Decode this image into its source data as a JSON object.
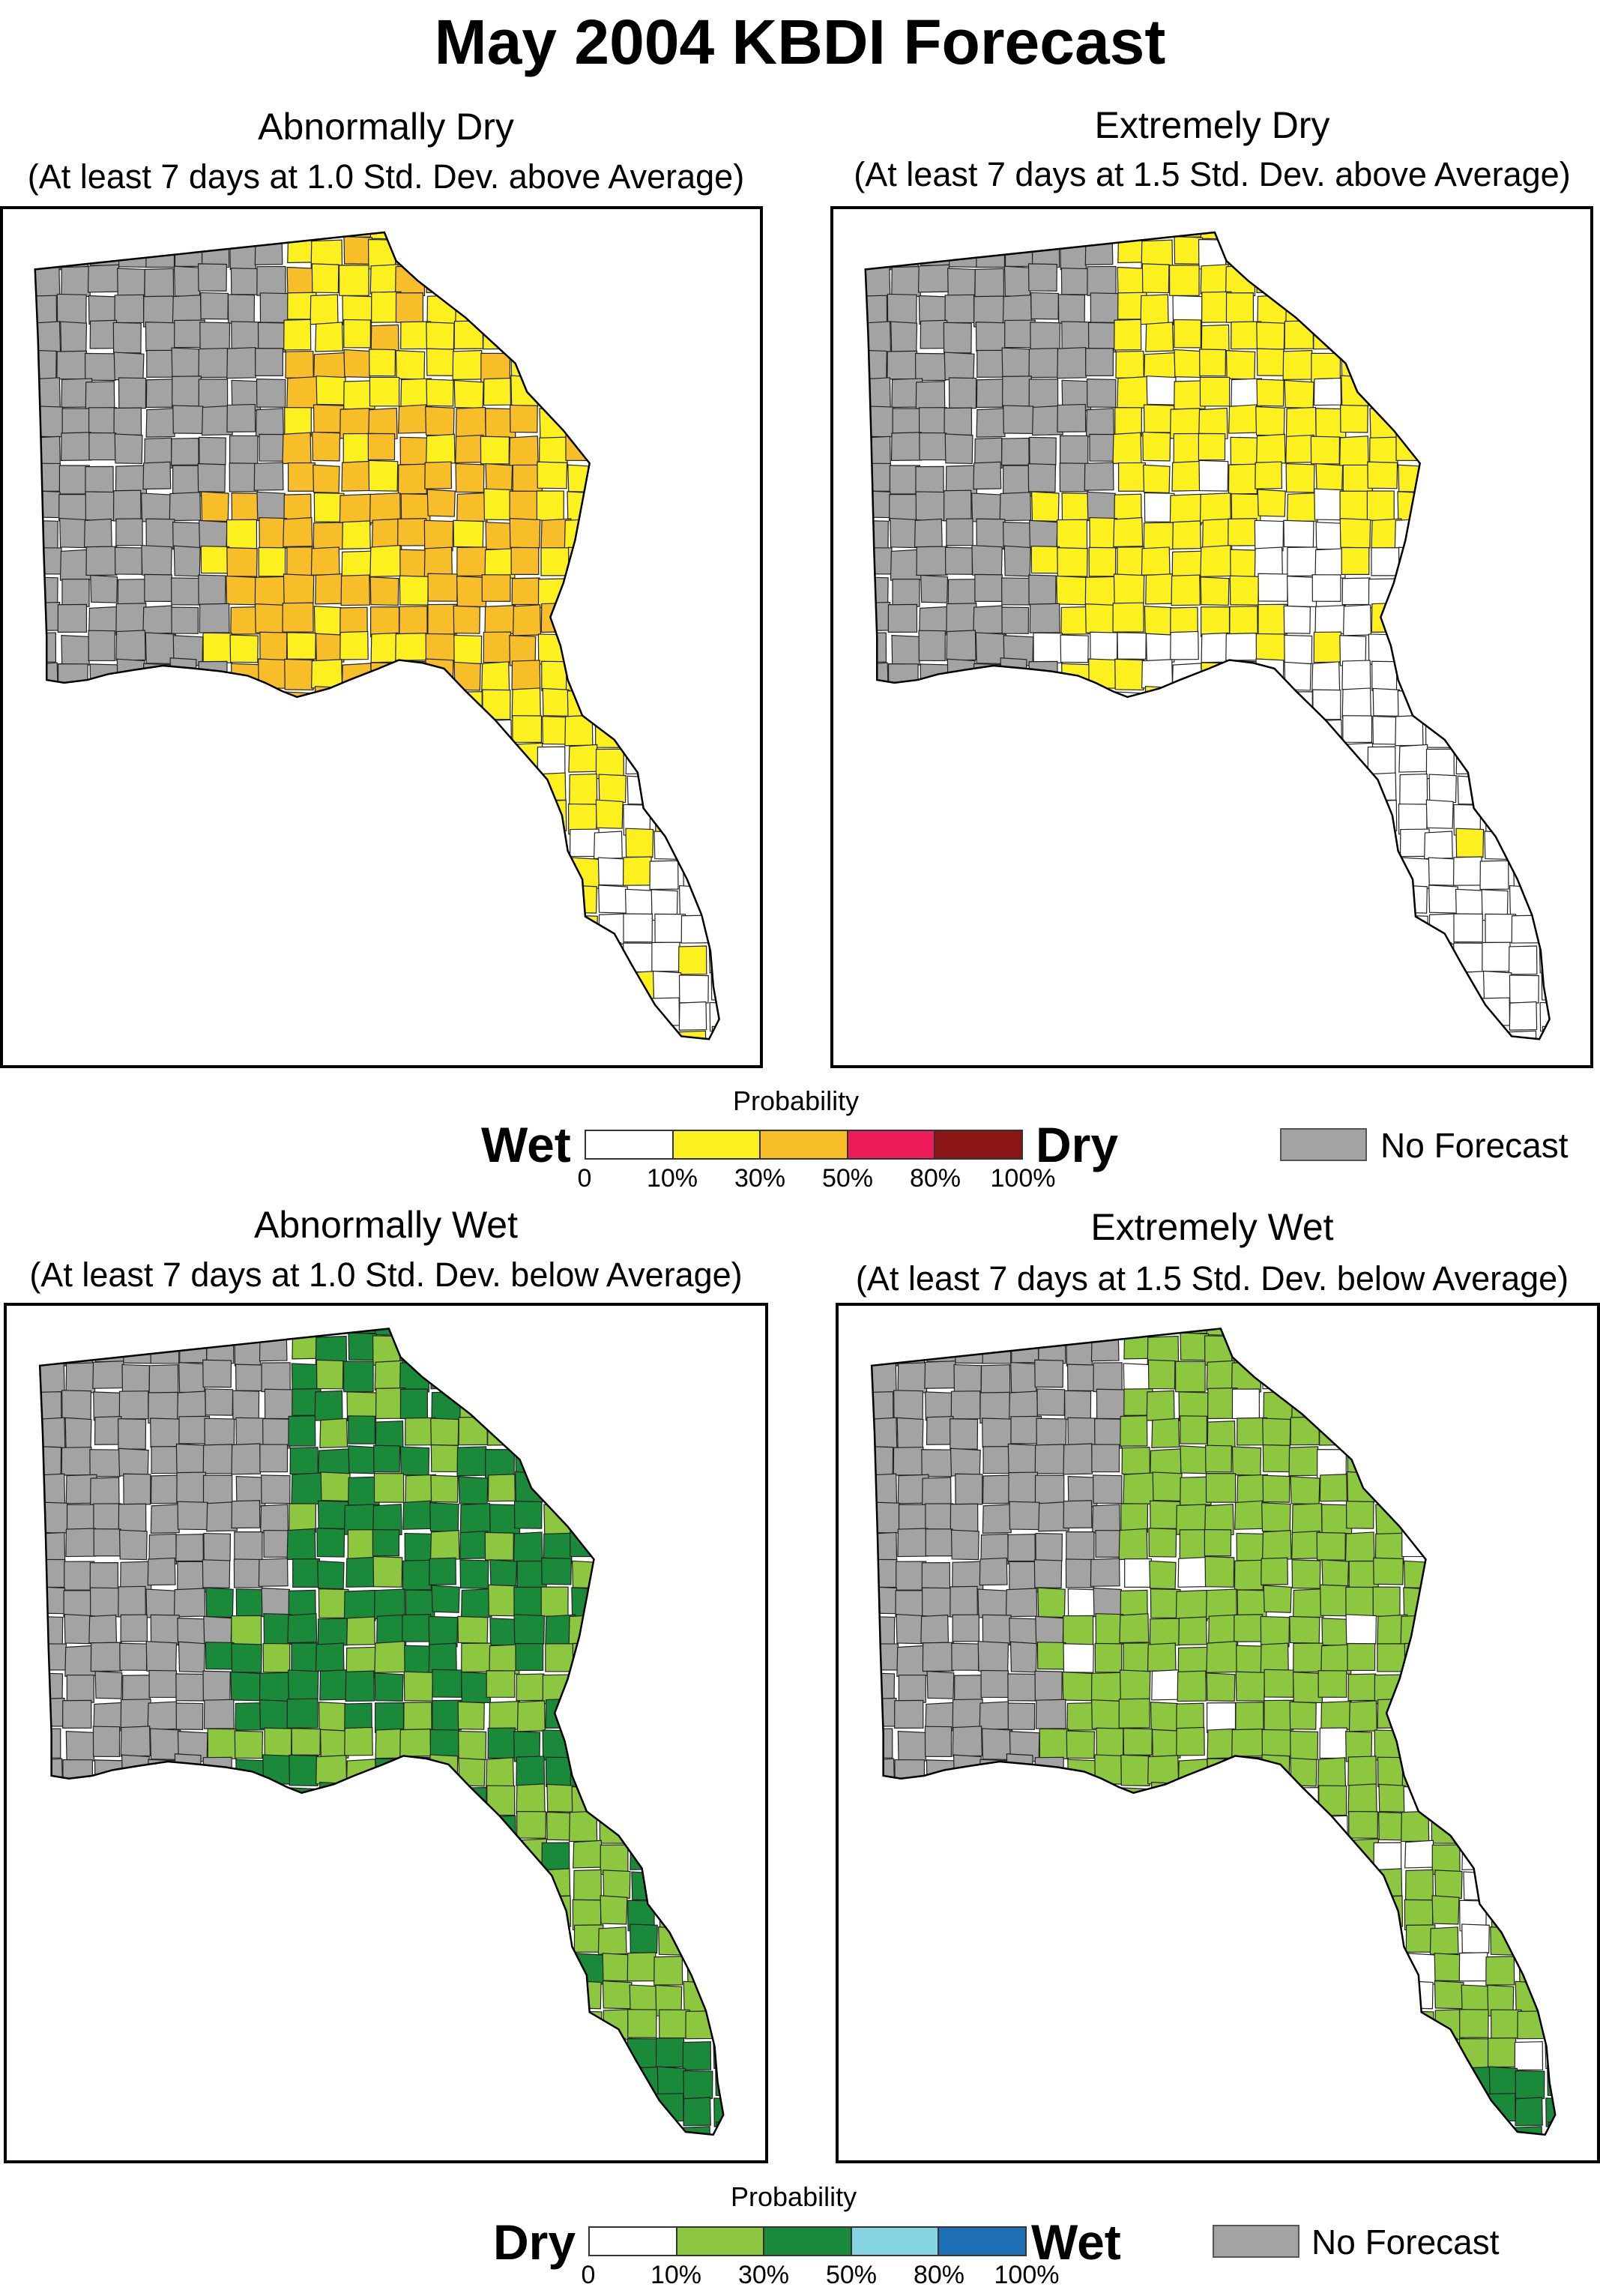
{
  "title": "May 2004 KBDI Forecast",
  "colors": {
    "no_forecast": "#a3a3a3",
    "white": "#ffffff",
    "yellow": "#fcf11e",
    "orange": "#f7be2a",
    "light_green": "#8dc63f",
    "dark_green": "#1a8a3a",
    "light_blue": "#86d3e3",
    "county_line": "#222222"
  },
  "panels": [
    {
      "id": "abnormally-dry",
      "title": "Abnormally Dry",
      "subtitle": "(At least 7 days at 1.0 Std. Dev. above Average)"
    },
    {
      "id": "extremely-dry",
      "title": "Extremely Dry",
      "subtitle": "(At least 7 days at 1.5 Std. Dev. above Average)"
    },
    {
      "id": "abnormally-wet",
      "title": "Abnormally Wet",
      "subtitle": "(At least 7 days at 1.0 Std. Dev. below Average)"
    },
    {
      "id": "extremely-wet",
      "title": "Extremely Wet",
      "subtitle": "(At least 7 days at 1.5 Std. Dev. below Average)"
    }
  ],
  "dry_legend": {
    "probability_label": "Probability",
    "left_label": "Wet",
    "right_label": "Dry",
    "colors": [
      "#ffffff",
      "#fcf11e",
      "#f7be2a",
      "#ed1c5a",
      "#8b1414"
    ],
    "ticks": [
      "0",
      "10%",
      "30%",
      "50%",
      "80%",
      "100%"
    ],
    "no_forecast_label": "No Forecast"
  },
  "wet_legend": {
    "probability_label": "Probability",
    "left_label": "Dry",
    "right_label": "Wet",
    "colors": [
      "#ffffff",
      "#8dc63f",
      "#1a8a3a",
      "#86d3e3",
      "#1f6fb5"
    ],
    "ticks": [
      "0",
      "10%",
      "30%",
      "50%",
      "80%",
      "100%"
    ],
    "no_forecast_label": "No Forecast"
  }
}
